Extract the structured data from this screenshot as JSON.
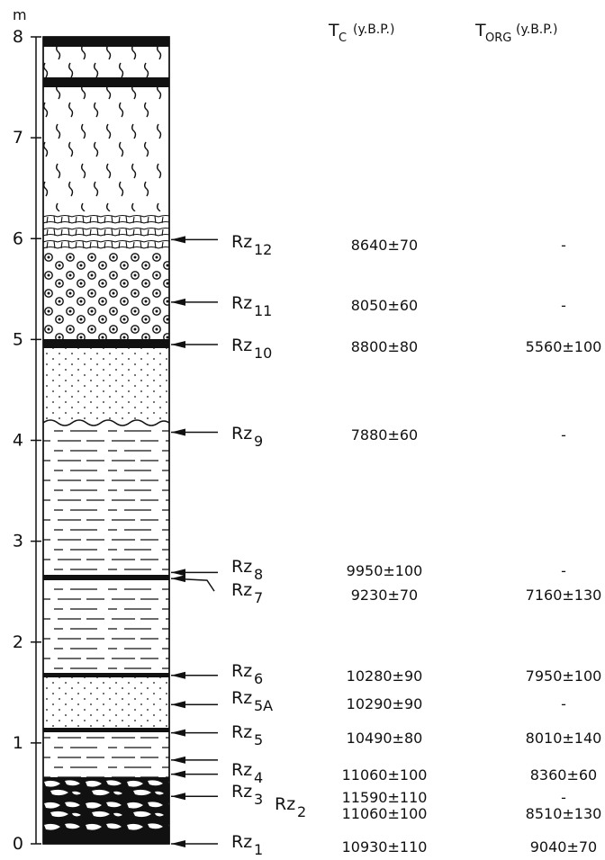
{
  "axis": {
    "unit": "m",
    "ticks": [
      0,
      1,
      2,
      3,
      4,
      5,
      6,
      7,
      8
    ]
  },
  "headers": [
    {
      "main": "T",
      "sub": "C",
      "unit": "(y.B.P.)"
    },
    {
      "main": "T",
      "sub": "ORG",
      "unit": "(y.B.P.)"
    }
  ],
  "samples": [
    {
      "name": "Rz",
      "sub": "12",
      "depth_m": 5.99,
      "tc": "8640±70",
      "torg": "-"
    },
    {
      "name": "Rz",
      "sub": "11",
      "depth_m": 5.37,
      "tc": "8050±60",
      "torg": "-"
    },
    {
      "name": "Rz",
      "sub": "10",
      "depth_m": 4.95,
      "tc": "8800±80",
      "torg": "5560±100"
    },
    {
      "name": "Rz",
      "sub": "9",
      "depth_m": 4.08,
      "tc": "7880±60",
      "torg": "-"
    },
    {
      "name": "Rz",
      "sub": "8",
      "depth_m": 2.69,
      "tc": "9950±100",
      "torg": "-"
    },
    {
      "name": "Rz",
      "sub": "7",
      "depth_m": 2.63,
      "tc": "9230±70",
      "torg": "7160±130"
    },
    {
      "name": "Rz",
      "sub": "6",
      "depth_m": 1.67,
      "tc": "10280±90",
      "torg": "7950±100"
    },
    {
      "name": "Rz",
      "sub": "5A",
      "depth_m": 1.38,
      "tc": "10290±90",
      "torg": "-"
    },
    {
      "name": "Rz",
      "sub": "5",
      "depth_m": 1.1,
      "tc": "10490±80",
      "torg": "8010±140"
    },
    {
      "name": "Rz",
      "sub": "4",
      "depth_m": 0.83,
      "tc": "11060±100",
      "torg": "8360±60"
    },
    {
      "name": "Rz",
      "sub": "3",
      "depth_m": 0.69,
      "tc": "11590±110",
      "torg": "-"
    },
    {
      "name": "Rz",
      "sub": "2",
      "depth_m": 0.47,
      "tc": "11060±100",
      "torg": "8510±130"
    },
    {
      "name": "Rz",
      "sub": "1",
      "depth_m": 0.0,
      "tc": "10930±110",
      "torg": "9040±70"
    }
  ]
}
